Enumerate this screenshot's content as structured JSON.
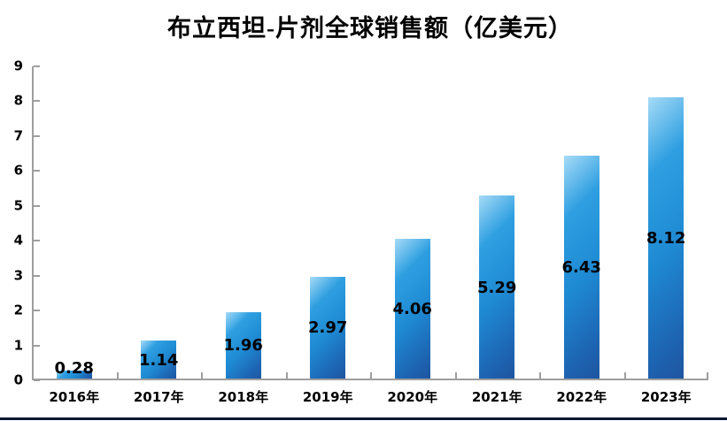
{
  "chart_data": {
    "type": "bar",
    "title": "布立西坦-片剂全球销售额（亿美元）",
    "categories": [
      "2016年",
      "2017年",
      "2018年",
      "2019年",
      "2020年",
      "2021年",
      "2022年",
      "2023年"
    ],
    "values": [
      0.28,
      1.14,
      1.96,
      2.97,
      4.06,
      5.29,
      6.43,
      8.12
    ],
    "data_labels": [
      "0.28",
      "1.14",
      "1.96",
      "2.97",
      "4.06",
      "5.29",
      "6.43",
      "8.12"
    ],
    "xlabel": "",
    "ylabel": "",
    "ylim": [
      0,
      9
    ],
    "y_ticks": [
      0,
      1,
      2,
      3,
      4,
      5,
      6,
      7,
      8,
      9
    ],
    "grid": false,
    "legend": "none",
    "data_label_position": "inside-center"
  },
  "colors": {
    "bar_gradient": [
      "#a6dbf7",
      "#2f9fe1",
      "#1e8ad3",
      "#1d64b2",
      "#1e55a0"
    ],
    "bar_gradient_stops": [
      0,
      25,
      55,
      85,
      100
    ],
    "axis_line": "#9e9e9e",
    "tick": "#9e9e9e",
    "text": "#000000",
    "bottom_border": "#0a1633",
    "background": "#ffffff"
  }
}
